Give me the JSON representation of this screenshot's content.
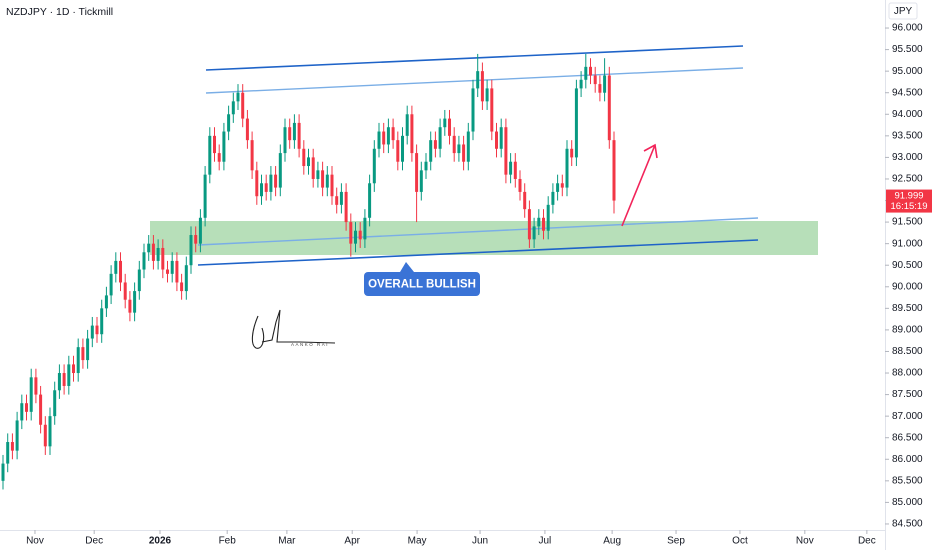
{
  "chart_data": {
    "type": "candlestick",
    "title": "NZDJPY · 1D · Tickmill",
    "currency": "JPY",
    "annotation": "OVERALL BULLISH",
    "signature": "AANKO RAI",
    "last_price": 91.999,
    "countdown": "16:15:19",
    "up_color": "#089981",
    "down_color": "#f23645",
    "xlim": [
      -0.64,
      187.66
    ],
    "xticks": [
      {
        "value": 6.8,
        "label": "Nov"
      },
      {
        "value": 19.4,
        "label": "Dec"
      },
      {
        "value": 33.4,
        "label": "2026"
      },
      {
        "value": 47.7,
        "label": "Feb"
      },
      {
        "value": 60.4,
        "label": "Mar"
      },
      {
        "value": 74.3,
        "label": "Apr"
      },
      {
        "value": 88.1,
        "label": "May"
      },
      {
        "value": 101.5,
        "label": "Jun"
      },
      {
        "value": 115.3,
        "label": "Jul"
      },
      {
        "value": 129.6,
        "label": "Aug"
      },
      {
        "value": 143.2,
        "label": "Sep"
      },
      {
        "value": 156.8,
        "label": "Oct"
      },
      {
        "value": 170.6,
        "label": "Nov"
      },
      {
        "value": 183.8,
        "label": "Dec"
      }
    ],
    "ylim": [
      84.36,
      96.65
    ],
    "yticks": [
      {
        "value": 96,
        "label": "96.000"
      },
      {
        "value": 95.5,
        "label": "95.500"
      },
      {
        "value": 95,
        "label": "95.000"
      },
      {
        "value": 94.5,
        "label": "94.500"
      },
      {
        "value": 94,
        "label": "94.000"
      },
      {
        "value": 93.5,
        "label": "93.500"
      },
      {
        "value": 93,
        "label": "93.000"
      },
      {
        "value": 92.5,
        "label": "92.500"
      },
      {
        "value": 92,
        "label": "92.000"
      },
      {
        "value": 91.5,
        "label": "91.500"
      },
      {
        "value": 91,
        "label": "91.000"
      },
      {
        "value": 90.5,
        "label": "90.500"
      },
      {
        "value": 90,
        "label": "90.000"
      },
      {
        "value": 89.5,
        "label": "89.500"
      },
      {
        "value": 89,
        "label": "89.000"
      },
      {
        "value": 88.5,
        "label": "88.500"
      },
      {
        "value": 88,
        "label": "88.000"
      },
      {
        "value": 87.5,
        "label": "87.500"
      },
      {
        "value": 87,
        "label": "87.000"
      },
      {
        "value": 86.5,
        "label": "86.500"
      },
      {
        "value": 86,
        "label": "86.000"
      },
      {
        "value": 85.5,
        "label": "85.500"
      },
      {
        "value": 85,
        "label": "85.000"
      },
      {
        "value": 84.5,
        "label": "84.500"
      }
    ],
    "series": [
      {
        "ohlc": [
          [
            85.5,
            86.1,
            85.3,
            85.9
          ],
          [
            85.9,
            86.6,
            85.7,
            86.4
          ],
          [
            86.4,
            86.6,
            86.0,
            86.2
          ],
          [
            86.2,
            87.1,
            86.0,
            86.9
          ],
          [
            86.9,
            87.5,
            86.7,
            87.3
          ],
          [
            87.3,
            87.5,
            86.9,
            87.1
          ],
          [
            87.1,
            88.1,
            86.9,
            87.9
          ],
          [
            87.9,
            88.1,
            87.3,
            87.5
          ],
          [
            87.5,
            87.7,
            86.6,
            86.8
          ],
          [
            86.8,
            87.0,
            86.1,
            86.3
          ],
          [
            86.3,
            87.2,
            86.1,
            87.0
          ],
          [
            87.0,
            87.8,
            86.8,
            87.6
          ],
          [
            87.6,
            88.2,
            87.4,
            88.0
          ],
          [
            88.0,
            88.2,
            87.5,
            87.7
          ],
          [
            87.7,
            88.4,
            87.5,
            88.2
          ],
          [
            88.2,
            88.4,
            87.8,
            88.0
          ],
          [
            88.0,
            88.8,
            87.8,
            88.6
          ],
          [
            88.6,
            88.8,
            88.1,
            88.3
          ],
          [
            88.3,
            89.0,
            88.1,
            88.8
          ],
          [
            88.8,
            89.3,
            88.6,
            89.1
          ],
          [
            89.1,
            89.3,
            88.7,
            88.9
          ],
          [
            88.9,
            89.7,
            88.7,
            89.5
          ],
          [
            89.5,
            90.0,
            89.3,
            89.8
          ],
          [
            89.8,
            90.5,
            89.6,
            90.3
          ],
          [
            90.3,
            90.8,
            90.1,
            90.6
          ],
          [
            90.6,
            90.8,
            89.9,
            90.1
          ],
          [
            90.1,
            90.3,
            89.5,
            89.7
          ],
          [
            89.7,
            89.9,
            89.2,
            89.4
          ],
          [
            89.4,
            90.1,
            89.2,
            89.9
          ],
          [
            89.9,
            90.6,
            89.7,
            90.4
          ],
          [
            90.4,
            91.0,
            90.2,
            90.8
          ],
          [
            90.8,
            91.2,
            90.6,
            91.0
          ],
          [
            91.0,
            91.2,
            90.4,
            90.6
          ],
          [
            90.6,
            91.1,
            90.4,
            90.9
          ],
          [
            90.9,
            91.1,
            90.2,
            90.4
          ],
          [
            90.4,
            90.6,
            90.1,
            90.3
          ],
          [
            90.3,
            90.8,
            90.1,
            90.6
          ],
          [
            90.6,
            90.8,
            89.9,
            90.1
          ],
          [
            90.1,
            90.3,
            89.7,
            89.9
          ],
          [
            89.9,
            90.7,
            89.7,
            90.5
          ],
          [
            90.5,
            91.4,
            90.3,
            91.2
          ],
          [
            91.2,
            91.4,
            90.8,
            91.0
          ],
          [
            91.0,
            91.8,
            90.8,
            91.6
          ],
          [
            91.6,
            92.8,
            91.4,
            92.6
          ],
          [
            92.6,
            93.7,
            92.4,
            93.5
          ],
          [
            93.5,
            93.7,
            92.9,
            93.1
          ],
          [
            93.1,
            93.3,
            92.7,
            92.9
          ],
          [
            92.9,
            93.8,
            92.7,
            93.6
          ],
          [
            93.6,
            94.2,
            93.4,
            94.0
          ],
          [
            94.0,
            94.5,
            93.8,
            94.3
          ],
          [
            94.3,
            94.7,
            94.1,
            94.5
          ],
          [
            94.5,
            94.7,
            93.7,
            93.9
          ],
          [
            93.9,
            94.1,
            93.2,
            93.4
          ],
          [
            93.4,
            93.6,
            92.5,
            92.7
          ],
          [
            92.7,
            92.9,
            91.9,
            92.1
          ],
          [
            92.1,
            92.6,
            91.9,
            92.4
          ],
          [
            92.4,
            92.6,
            92.0,
            92.2
          ],
          [
            92.2,
            92.8,
            92.0,
            92.6
          ],
          [
            92.6,
            92.8,
            92.1,
            92.3
          ],
          [
            92.3,
            93.3,
            92.1,
            93.1
          ],
          [
            93.1,
            93.9,
            92.9,
            93.7
          ],
          [
            93.7,
            93.9,
            93.2,
            93.4
          ],
          [
            93.4,
            94.0,
            93.2,
            93.8
          ],
          [
            93.8,
            94.0,
            93.0,
            93.2
          ],
          [
            93.2,
            93.4,
            92.6,
            92.8
          ],
          [
            92.8,
            93.2,
            92.6,
            93.0
          ],
          [
            93.0,
            93.2,
            92.3,
            92.5
          ],
          [
            92.5,
            92.9,
            92.3,
            92.7
          ],
          [
            92.7,
            92.9,
            92.1,
            92.3
          ],
          [
            92.3,
            92.8,
            92.1,
            92.6
          ],
          [
            92.6,
            92.8,
            91.9,
            92.1
          ],
          [
            92.1,
            92.3,
            91.7,
            91.9
          ],
          [
            91.9,
            92.4,
            91.7,
            92.2
          ],
          [
            92.2,
            92.4,
            91.3,
            91.5
          ],
          [
            91.5,
            91.7,
            90.7,
            91.0
          ],
          [
            91.0,
            91.5,
            90.8,
            91.3
          ],
          [
            91.3,
            91.5,
            90.9,
            91.1
          ],
          [
            91.1,
            91.8,
            90.9,
            91.6
          ],
          [
            91.6,
            92.6,
            91.4,
            92.4
          ],
          [
            92.4,
            93.4,
            92.2,
            93.2
          ],
          [
            93.2,
            93.8,
            93.0,
            93.6
          ],
          [
            93.6,
            93.8,
            93.1,
            93.3
          ],
          [
            93.3,
            93.9,
            93.1,
            93.7
          ],
          [
            93.7,
            93.9,
            93.2,
            93.4
          ],
          [
            93.4,
            93.6,
            92.7,
            92.9
          ],
          [
            92.9,
            93.7,
            92.7,
            93.5
          ],
          [
            93.5,
            94.2,
            93.3,
            94.0
          ],
          [
            94.0,
            94.2,
            92.9,
            93.1
          ],
          [
            93.1,
            93.3,
            91.5,
            92.2
          ],
          [
            92.2,
            92.9,
            92.0,
            92.7
          ],
          [
            92.7,
            93.1,
            92.5,
            92.9
          ],
          [
            92.9,
            93.6,
            92.7,
            93.4
          ],
          [
            93.4,
            93.6,
            93.0,
            93.2
          ],
          [
            93.2,
            93.9,
            93.0,
            93.7
          ],
          [
            93.7,
            94.1,
            93.5,
            93.9
          ],
          [
            93.9,
            94.1,
            93.3,
            93.5
          ],
          [
            93.5,
            93.7,
            92.9,
            93.1
          ],
          [
            93.1,
            93.5,
            92.9,
            93.3
          ],
          [
            93.3,
            93.5,
            92.7,
            92.9
          ],
          [
            92.9,
            93.8,
            92.7,
            93.6
          ],
          [
            93.6,
            94.8,
            93.4,
            94.6
          ],
          [
            94.6,
            95.4,
            94.4,
            95.0
          ],
          [
            95.0,
            95.2,
            94.1,
            94.3
          ],
          [
            94.3,
            94.8,
            94.1,
            94.6
          ],
          [
            94.6,
            94.8,
            93.4,
            93.6
          ],
          [
            93.6,
            93.8,
            93.0,
            93.2
          ],
          [
            93.2,
            93.9,
            93.0,
            93.7
          ],
          [
            93.7,
            93.9,
            92.4,
            92.6
          ],
          [
            92.6,
            93.1,
            92.4,
            92.9
          ],
          [
            92.9,
            93.1,
            92.3,
            92.5
          ],
          [
            92.5,
            92.7,
            92.0,
            92.2
          ],
          [
            92.2,
            92.4,
            91.6,
            91.8
          ],
          [
            91.8,
            92.0,
            90.9,
            91.1
          ],
          [
            91.1,
            91.6,
            90.9,
            91.4
          ],
          [
            91.4,
            91.8,
            91.2,
            91.6
          ],
          [
            91.6,
            91.8,
            91.1,
            91.3
          ],
          [
            91.3,
            92.1,
            91.1,
            91.9
          ],
          [
            91.9,
            92.4,
            91.7,
            92.2
          ],
          [
            92.2,
            92.6,
            92.0,
            92.4
          ],
          [
            92.4,
            92.6,
            92.1,
            92.3
          ],
          [
            92.3,
            93.4,
            92.1,
            93.2
          ],
          [
            93.2,
            93.4,
            92.8,
            93.0
          ],
          [
            93.0,
            94.8,
            92.8,
            94.6
          ],
          [
            94.6,
            95.0,
            94.4,
            94.8
          ],
          [
            94.8,
            95.4,
            94.6,
            95.1
          ],
          [
            95.1,
            95.3,
            94.7,
            94.9
          ],
          [
            94.9,
            95.1,
            94.5,
            94.7
          ],
          [
            94.7,
            94.9,
            94.3,
            94.5
          ],
          [
            94.5,
            95.3,
            94.3,
            94.9
          ],
          [
            94.9,
            95.1,
            93.2,
            93.4
          ],
          [
            93.4,
            93.6,
            91.7,
            91.999
          ]
        ]
      }
    ]
  }
}
